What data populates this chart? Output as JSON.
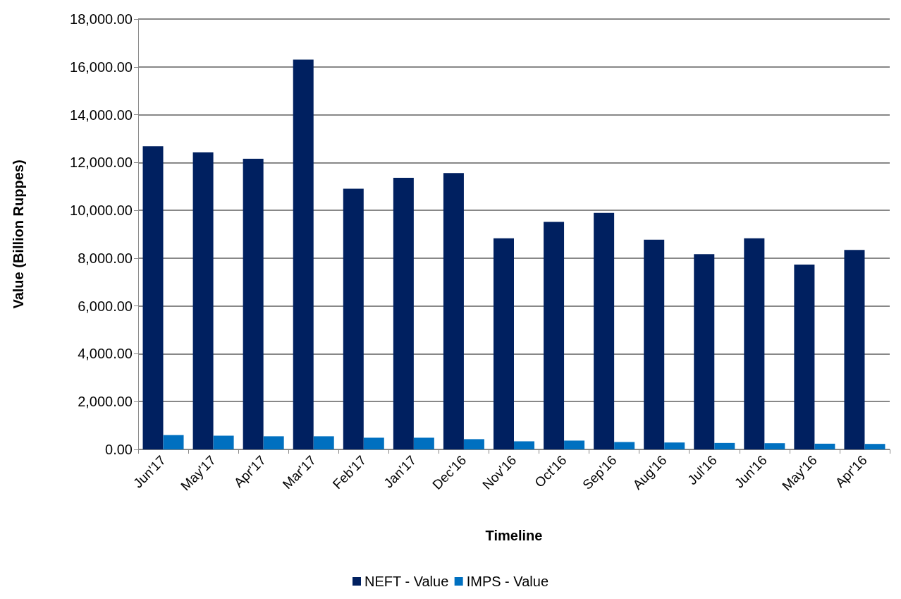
{
  "chart_data": {
    "type": "bar",
    "xlabel": "Timeline",
    "ylabel": "Value (Billion Ruppes)",
    "categories": [
      "Jun'17",
      "May'17",
      "Apr'17",
      "Mar'17",
      "Feb'17",
      "Jan'17",
      "Dec'16",
      "Nov'16",
      "Oct'16",
      "Sep'16",
      "Aug'16",
      "Jul'16",
      "Jun'16",
      "May'16",
      "Apr'16"
    ],
    "series": [
      {
        "name": "NEFT - Value",
        "color": "#002060",
        "values": [
          12680,
          12420,
          12160,
          16300,
          10900,
          11360,
          11560,
          8830,
          9520,
          9890,
          8770,
          8170,
          8830,
          7730,
          8340
        ]
      },
      {
        "name": "IMPS - Value",
        "color": "#0070c0",
        "values": [
          600,
          575,
          550,
          550,
          490,
          490,
          430,
          340,
          370,
          310,
          290,
          270,
          260,
          240,
          230
        ]
      }
    ],
    "ylim": [
      0,
      18000
    ],
    "yticks": [
      {
        "value": 0,
        "label": "0.00"
      },
      {
        "value": 2000,
        "label": "2,000.00"
      },
      {
        "value": 4000,
        "label": "4,000.00"
      },
      {
        "value": 6000,
        "label": "6,000.00"
      },
      {
        "value": 8000,
        "label": "8,000.00"
      },
      {
        "value": 10000,
        "label": "10,000.00"
      },
      {
        "value": 12000,
        "label": "12,000.00"
      },
      {
        "value": 14000,
        "label": "14,000.00"
      },
      {
        "value": 16000,
        "label": "16,000.00"
      },
      {
        "value": 18000,
        "label": "18,000.00"
      }
    ],
    "grid": "y",
    "legend": "bottom"
  }
}
